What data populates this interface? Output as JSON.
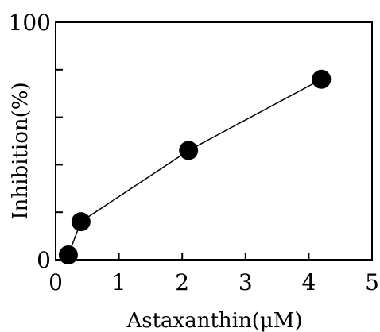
{
  "chart_data": {
    "type": "line",
    "xlabel": "Astaxanthin(μM)",
    "ylabel": "Inhibition(%)",
    "xlim": [
      0,
      5
    ],
    "ylim": [
      0,
      100
    ],
    "x_ticks": [
      0,
      1,
      2,
      3,
      4,
      5
    ],
    "x_tick_labels": [
      "0",
      "1",
      "2",
      "3",
      "4",
      "5"
    ],
    "y_ticks": [
      0,
      20,
      40,
      60,
      80,
      100
    ],
    "y_tick_labels": [
      "0",
      "",
      "",
      "",
      "",
      "100"
    ],
    "grid": false,
    "series": [
      {
        "x": [
          0.2,
          0.4,
          2.1,
          4.2
        ],
        "y": [
          2,
          16,
          46,
          76
        ],
        "marker": "filled-circle",
        "color": "#000000"
      }
    ]
  }
}
